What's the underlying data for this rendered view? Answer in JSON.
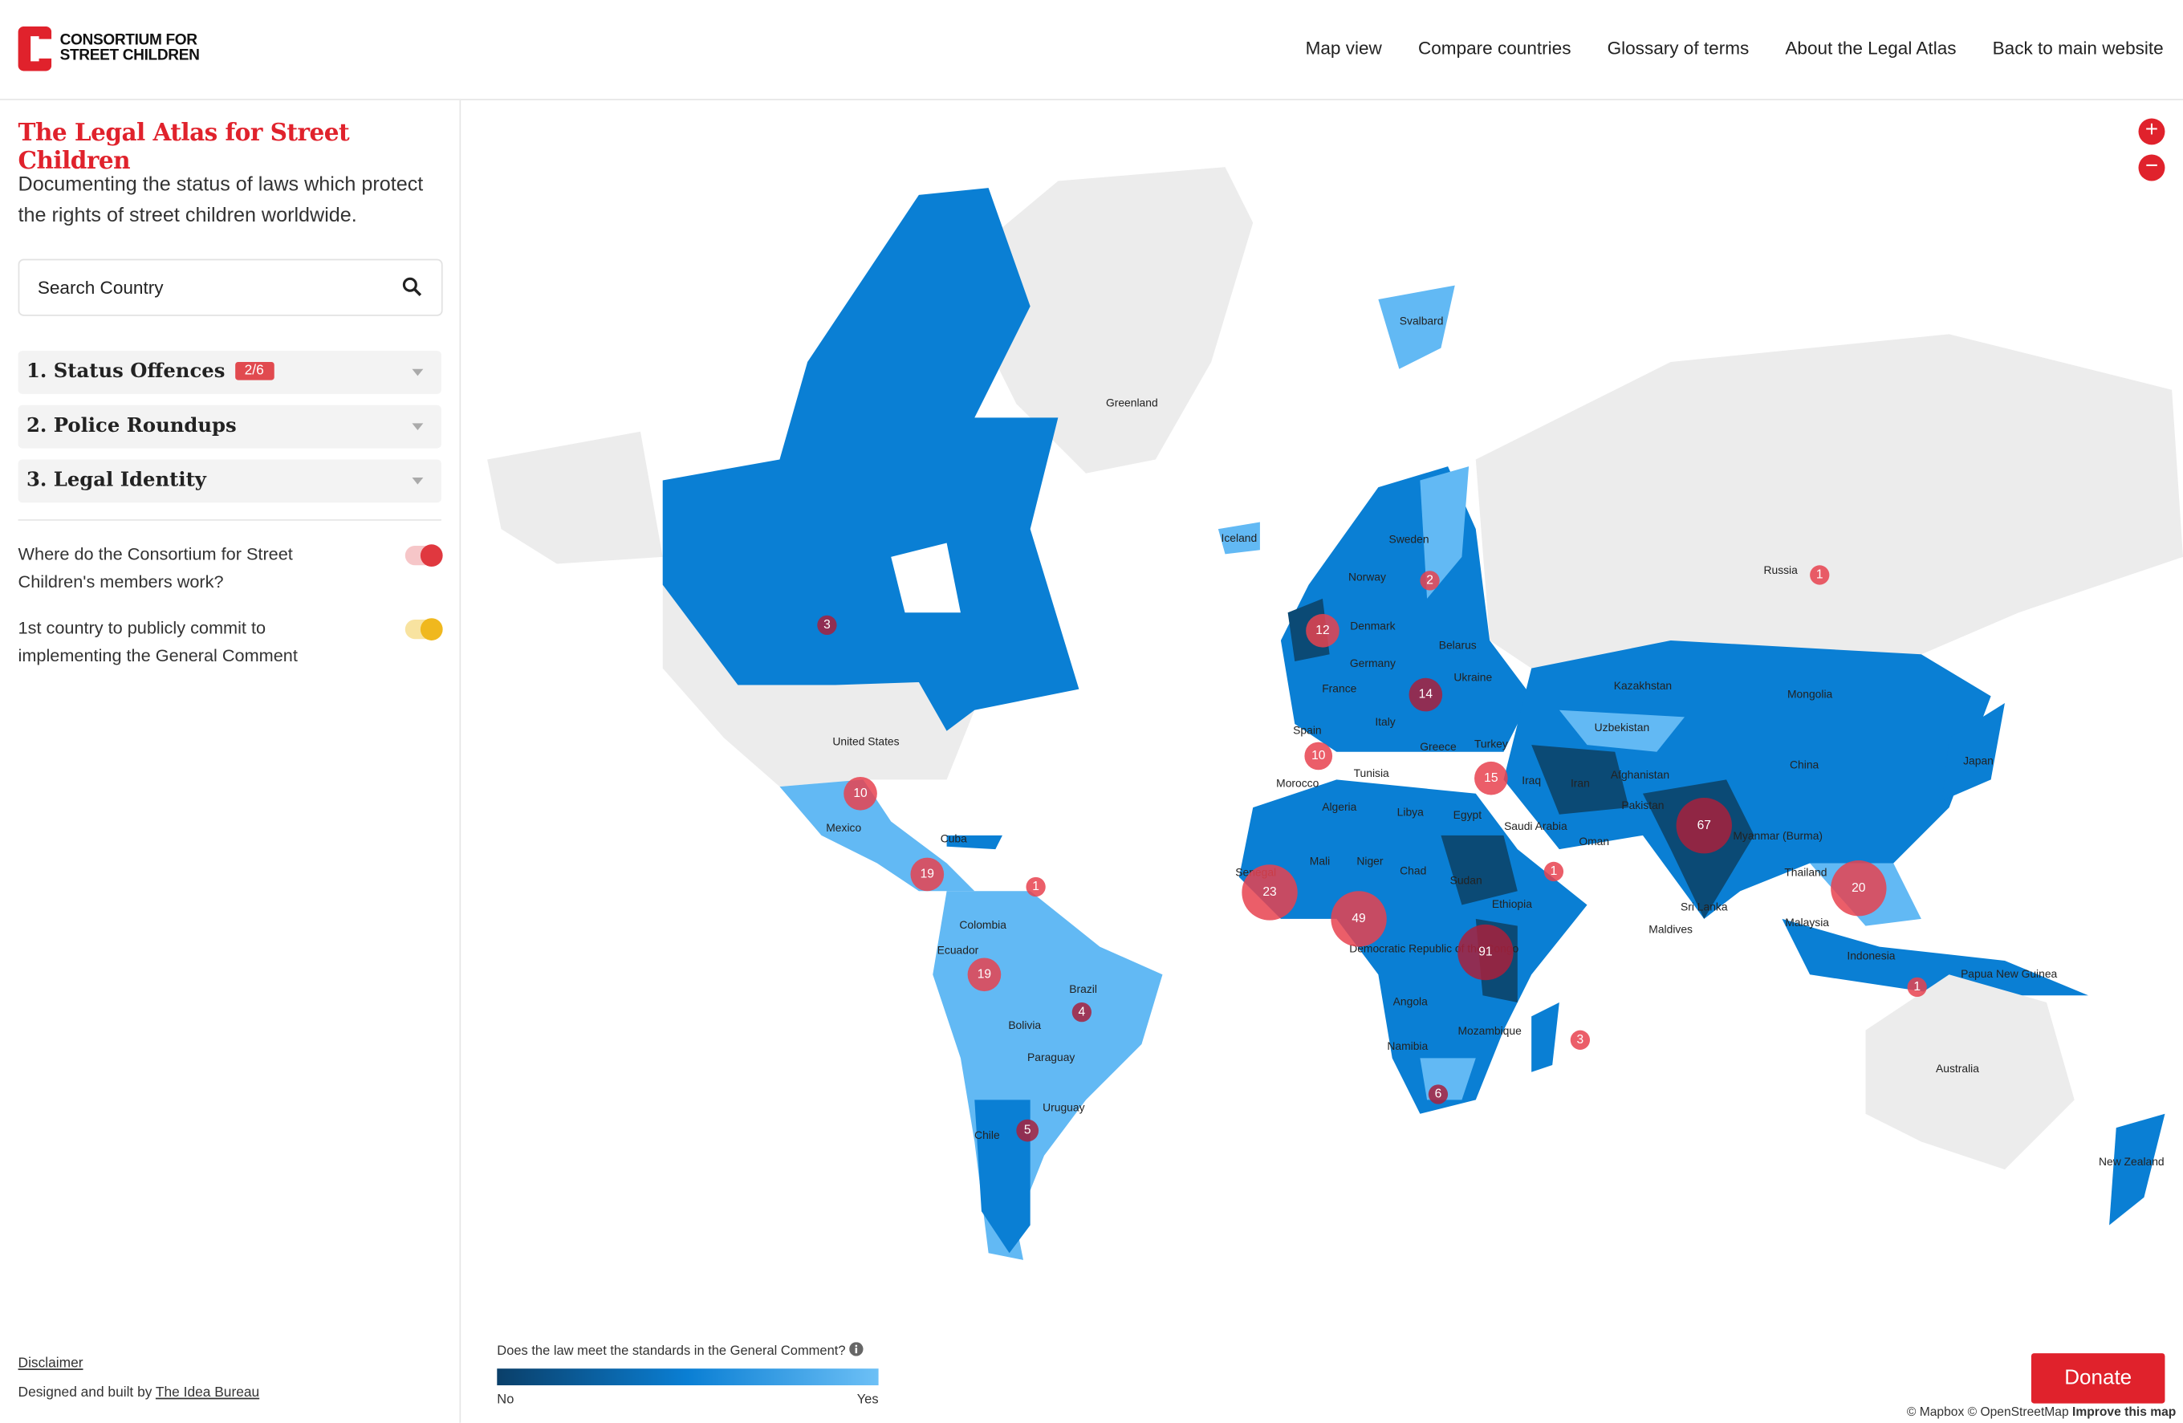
{
  "header": {
    "logo_line1": "CONSORTIUM FOR",
    "logo_line2": "STREET CHILDREN",
    "nav": [
      "Map view",
      "Compare countries",
      "Glossary of terms",
      "About the Legal Atlas",
      "Back to main website"
    ]
  },
  "sidebar": {
    "title": "The Legal Atlas for Street Children",
    "description": "Documenting the status of laws which protect the rights of street children worldwide.",
    "search_placeholder": "Search Country",
    "sections": [
      {
        "label": "1. Status Offences",
        "badge": "2/6"
      },
      {
        "label": "2. Police Roundups"
      },
      {
        "label": "3. Legal Identity"
      }
    ],
    "toggles": [
      "Where do the Consortium for Street Children's members work?",
      "1st country to publicly commit to implementing the General Comment"
    ],
    "footer": {
      "disclaimer": "Disclaimer",
      "credit_prefix": "Designed and built by",
      "credit_link": "The Idea Bureau"
    }
  },
  "map": {
    "labels": [
      "Greenland",
      "Svalbard",
      "Iceland",
      "Sweden",
      "Norway",
      "Russia",
      "Denmark",
      "Belarus",
      "Germany",
      "Ukraine",
      "France",
      "Kazakhstan",
      "Mongolia",
      "Spain",
      "Italy",
      "Uzbekistan",
      "Turkey",
      "Greece",
      "China",
      "Tunisia",
      "Morocco",
      "Iraq",
      "Iran",
      "Afghanistan",
      "Pakistan",
      "Japan",
      "Algeria",
      "Libya",
      "Egypt",
      "Saudi Arabia",
      "Oman",
      "Myanmar (Burma)",
      "United States",
      "Mexico",
      "Cuba",
      "Mali",
      "Niger",
      "Chad",
      "Sudan",
      "Senegal",
      "Thailand",
      "Ethiopia",
      "Sri Lanka",
      "Maldives",
      "Malaysia",
      "Colombia",
      "Ecuador",
      "Democratic Republic of the Congo",
      "Indonesia",
      "Papua New Guinea",
      "Brazil",
      "Angola",
      "Bolivia",
      "Mozambique",
      "Namibia",
      "Paraguay",
      "Australia",
      "Uruguay",
      "Chile",
      "New Zealand"
    ],
    "clusters": [
      3,
      10,
      19,
      1,
      19,
      4,
      5,
      12,
      2,
      14,
      10,
      15,
      23,
      49,
      91,
      1,
      67,
      20,
      1,
      1,
      3,
      6
    ]
  },
  "legend": {
    "question": "Does the law meet the standards in the General Comment?",
    "min_label": "No",
    "max_label": "Yes"
  },
  "donate": "Donate",
  "attribution": {
    "text": "© Mapbox © OpenStreetMap",
    "improve": "Improve this map"
  }
}
